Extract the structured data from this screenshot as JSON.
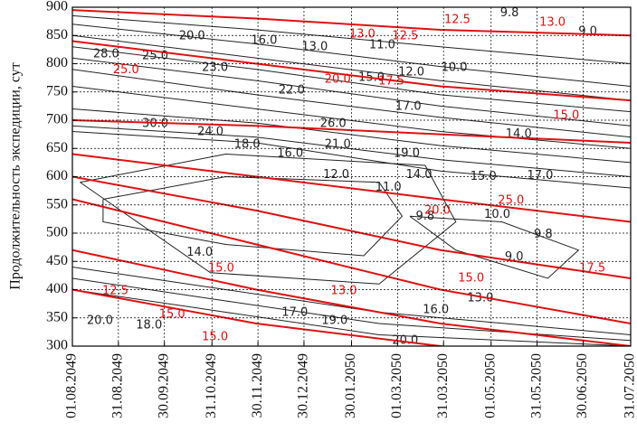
{
  "chart_data": {
    "type": "contour",
    "y_label": "Продолжительность экспедиции, сут",
    "xlim": [
      0,
      364
    ],
    "xticks": [
      {
        "value": 0,
        "label": "01.08.2049"
      },
      {
        "value": 30,
        "label": "31.08.2049"
      },
      {
        "value": 60,
        "label": "30.09.2049"
      },
      {
        "value": 91,
        "label": "31.10.2049"
      },
      {
        "value": 121,
        "label": "30.11.2049"
      },
      {
        "value": 151,
        "label": "30.12.2049"
      },
      {
        "value": 182,
        "label": "30.01.2050"
      },
      {
        "value": 212,
        "label": "01.03.2050"
      },
      {
        "value": 242,
        "label": "31.03.2050"
      },
      {
        "value": 273,
        "label": "01.05.2050"
      },
      {
        "value": 303,
        "label": "31.05.2050"
      },
      {
        "value": 333,
        "label": "30.06.2050"
      },
      {
        "value": 364,
        "label": "31.07.2050"
      }
    ],
    "ylim": [
      300,
      900
    ],
    "yticks": [
      300,
      350,
      400,
      450,
      500,
      550,
      600,
      650,
      700,
      750,
      800,
      850,
      900
    ],
    "grid": true,
    "contours": [
      {
        "color": "#222222",
        "lines": [
          {
            "x": [
              0,
              120,
              240,
              364
            ],
            "y": [
              885,
              860,
              830,
              800
            ]
          },
          {
            "x": [
              0,
              120,
              240,
              364
            ],
            "y": [
              870,
              835,
              795,
              760
            ]
          },
          {
            "x": [
              0,
              120,
              240,
              364
            ],
            "y": [
              850,
              810,
              770,
              735
            ]
          },
          {
            "x": [
              0,
              120,
              240,
              364
            ],
            "y": [
              830,
              790,
              745,
              715
            ]
          },
          {
            "x": [
              0,
              120,
              240,
              364
            ],
            "y": [
              810,
              770,
              725,
              690
            ]
          },
          {
            "x": [
              0,
              120,
              240,
              364
            ],
            "y": [
              790,
              745,
              705,
              670
            ]
          },
          {
            "x": [
              0,
              120,
              240,
              364
            ],
            "y": [
              760,
              720,
              680,
              650
            ]
          },
          {
            "x": [
              0,
              120,
              240,
              364
            ],
            "y": [
              720,
              695,
              655,
              625
            ]
          },
          {
            "x": [
              0,
              120,
              240,
              364
            ],
            "y": [
              690,
              670,
              630,
              600
            ]
          },
          {
            "x": [
              0,
              120,
              240,
              364
            ],
            "y": [
              680,
              660,
              610,
              580
            ]
          },
          {
            "x": [
              20,
              100,
              200,
              215,
              190,
              100,
              20,
              20
            ],
            "y": [
              560,
              600,
              590,
              530,
              460,
              480,
              520,
              560
            ]
          },
          {
            "x": [
              5,
              100,
              230,
              250,
              200,
              90,
              5
            ],
            "y": [
              590,
              640,
              620,
              520,
              410,
              430,
              590
            ]
          },
          {
            "x": [
              220,
              280,
              330,
              310,
              250,
              220
            ],
            "y": [
              530,
              520,
              470,
              420,
              470,
              530
            ]
          },
          {
            "x": [
              0,
              100,
              200,
              364
            ],
            "y": [
              420,
              380,
              340,
              310
            ]
          },
          {
            "x": [
              0,
              100,
              200,
              364
            ],
            "y": [
              400,
              360,
              320,
              300
            ]
          },
          {
            "x": [
              0,
              100,
              200,
              364
            ],
            "y": [
              440,
              400,
              360,
              320
            ]
          }
        ],
        "labels": {
          "x": [
            285,
            336,
            78,
            125,
            158,
            202,
            22,
            54,
            93,
            249,
            221,
            195,
            143,
            219,
            54,
            170,
            90,
            291,
            114,
            173,
            142,
            218,
            172,
            226,
            268,
            305,
            206,
            277,
            230,
            307,
            288,
            83,
            266,
            237,
            145,
            171,
            217,
            50,
            18
          ],
          "y": [
            890,
            857,
            849,
            841,
            830,
            833,
            817,
            814,
            793,
            793,
            785,
            775,
            753,
            724,
            694,
            694,
            679,
            675,
            657,
            657,
            641,
            641,
            603,
            603,
            600,
            602,
            581,
            533,
            530,
            498,
            458,
            466,
            385,
            364,
            359,
            345,
            310,
            337,
            345
          ],
          "values": [
            9.8,
            9,
            20,
            16,
            13,
            11,
            28,
            25,
            23,
            10,
            12,
            15,
            22,
            17,
            30,
            26,
            24,
            14,
            18,
            21,
            16,
            19,
            12,
            14,
            15,
            17,
            11,
            10,
            9.8,
            9.8,
            9,
            14,
            13,
            16,
            17,
            19,
            20,
            18,
            20
          ],
          "value_labels": [
            "9.8",
            "9.0",
            "20.0",
            "16.0",
            "13.0",
            "11.0",
            "28.0",
            "25.0",
            "23.0",
            "10.0",
            "12.0",
            "15.0",
            "22.0",
            "17.0",
            "30.0",
            "26.0",
            "24.0",
            "14.0",
            "18.0",
            "21.0",
            "16.0",
            "19.0",
            "12.0",
            "14.0",
            "15.0",
            "17.0",
            "11.0",
            "10.0",
            "9.8",
            "9.8",
            "9.0",
            "14.0",
            "13.0",
            "16.0",
            "17.0",
            "19.0",
            "20.0",
            "18.0",
            "20.0"
          ]
        }
      },
      {
        "color": "#e01010",
        "lines": [
          {
            "x": [
              0,
              120,
              240,
              364
            ],
            "y": [
              895,
              880,
              860,
              850
            ]
          },
          {
            "x": [
              0,
              120,
              240,
              364
            ],
            "y": [
              840,
              800,
              760,
              735
            ]
          },
          {
            "x": [
              0,
              120,
              240,
              364
            ],
            "y": [
              700,
              690,
              675,
              660
            ]
          },
          {
            "x": [
              0,
              120,
              240,
              364
            ],
            "y": [
              640,
              600,
              560,
              520
            ]
          },
          {
            "x": [
              0,
              120,
              240,
              364
            ],
            "y": [
              600,
              540,
              470,
              420
            ]
          },
          {
            "x": [
              0,
              120,
              240,
              364
            ],
            "y": [
              560,
              480,
              400,
              340
            ]
          },
          {
            "x": [
              0,
              120,
              240,
              364
            ],
            "y": [
              470,
              400,
              340,
              300
            ]
          },
          {
            "x": [
              0,
              120,
              240,
              364
            ],
            "y": [
              400,
              340,
              300,
              260
            ]
          }
        ],
        "labels": {
          "x": [
            251,
            313,
            189,
            217,
            35,
            173,
            208,
            322,
            286,
            238,
            339,
            260,
            97,
            28,
            65,
            93,
            177
          ],
          "y": [
            878,
            873,
            852,
            849,
            789,
            772,
            769,
            708,
            558,
            540,
            438,
            420,
            438,
            398,
            356,
            316,
            398
          ],
          "values": [
            12.5,
            13,
            13,
            12.5,
            25,
            20,
            17.5,
            15,
            25,
            20,
            17.5,
            15,
            15,
            12.5,
            15,
            15,
            13
          ],
          "value_labels": [
            "12.5",
            "13.0",
            "13.0",
            "12.5",
            "25.0",
            "20.0",
            "17.5",
            "15.0",
            "25.0",
            "20.0",
            "17.5",
            "15.0",
            "15.0",
            "12.5",
            "15.0",
            "15.0",
            "13.0"
          ]
        }
      }
    ]
  }
}
